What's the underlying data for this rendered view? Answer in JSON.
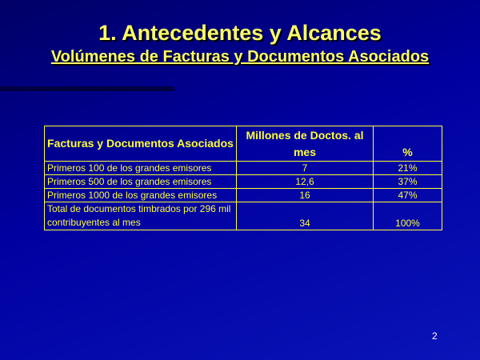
{
  "slide": {
    "title": "1. Antecedentes y Alcances",
    "subtitle": "Volúmenes de Facturas y Documentos Asociados",
    "page_number": "2"
  },
  "table": {
    "headers": [
      "Facturas y Documentos Asociados",
      "Millones de Doctos. al mes",
      "%"
    ],
    "rows": [
      [
        "Primeros 100 de los grandes emisores",
        "7",
        "21%"
      ],
      [
        "Primeros 500 de los grandes emisores",
        "12,6",
        "37%"
      ],
      [
        "Primeros 1000 de los grandes emisores",
        "16",
        "47%"
      ],
      [
        "Total de documentos timbrados por 296 mil contribuyentes al mes",
        "34",
        "100%"
      ]
    ]
  },
  "colors": {
    "text": "#ffff33",
    "background": "#0000a0"
  }
}
